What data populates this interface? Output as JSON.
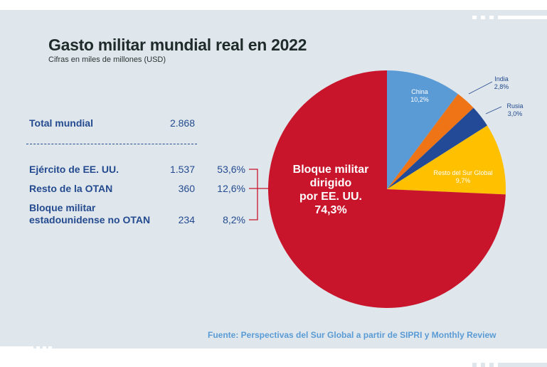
{
  "chart_data": {
    "type": "pie",
    "title": "Gasto militar mundial real en 2022",
    "subtitle": "Cifras en miles de millones (USD)",
    "slices": [
      {
        "label": "China",
        "value": 10.2,
        "value_label": "10,2%",
        "color": "#5b9bd5"
      },
      {
        "label": "India",
        "value": 2.8,
        "value_label": "2,8%",
        "color": "#ee7416"
      },
      {
        "label": "Rusia",
        "value": 3.0,
        "value_label": "3,0%",
        "color": "#234a96"
      },
      {
        "label": "Resto del Sur Global",
        "value": 9.7,
        "value_label": "9,7%",
        "color": "#ffc000"
      },
      {
        "label": "Bloque militar dirigido por EE. UU.",
        "label_lines": [
          "Bloque militar",
          "dirigido",
          "por EE. UU."
        ],
        "value": 74.3,
        "value_label": "74,3%",
        "color": "#c8152b"
      }
    ],
    "table": {
      "total": {
        "label": "Total mundial",
        "value": "2.868"
      },
      "rows": [
        {
          "label": "Ejército de EE. UU.",
          "value": "1.537",
          "pct": "53,6%"
        },
        {
          "label": "Resto de la OTAN",
          "value": "360",
          "pct": "12,6%"
        },
        {
          "label_lines": [
            "Bloque militar",
            "estadounidense no OTAN"
          ],
          "value": "234",
          "pct": "8,2%"
        }
      ]
    },
    "source": "Fuente: Perspectivas del Sur Global a partir de SIPRI y Monthly Review"
  }
}
